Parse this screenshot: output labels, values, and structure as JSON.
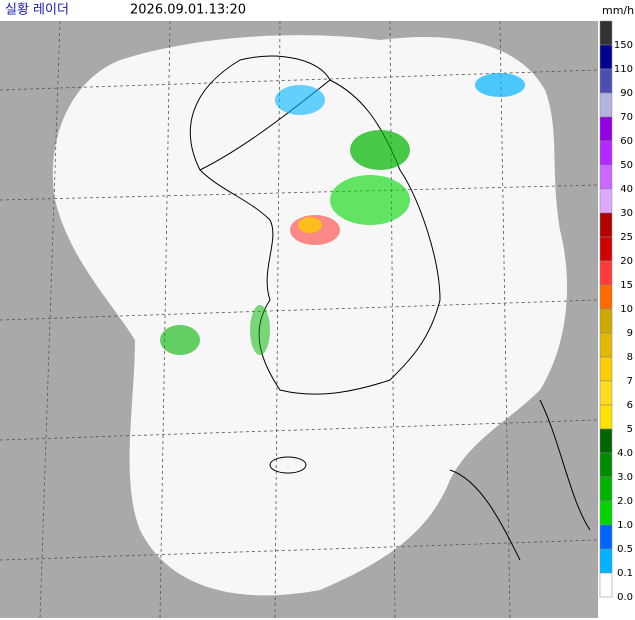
{
  "header": {
    "title": "실황 레이더",
    "time": "2026.09.01.13:20",
    "unit": "mm/h"
  },
  "legend": {
    "colors": [
      "#333333",
      "#000390",
      "#4c4eb1",
      "#b3b4de",
      "#9300e4",
      "#b329ff",
      "#c969ff",
      "#dfa9ff",
      "#b40000",
      "#d20000",
      "#ff3c3c",
      "#ff6a00",
      "#ccaa00",
      "#e0b900",
      "#f9cd00",
      "#ffdc1f",
      "#ffe100",
      "#006600",
      "#008c00",
      "#00b300",
      "#00d500",
      "#0064ff",
      "#00b4ff",
      "#ffffff"
    ],
    "labels": [
      "150",
      "110",
      "90",
      "70",
      "60",
      "50",
      "40",
      "30",
      "25",
      "20",
      "15",
      "10",
      "9",
      "8",
      "7",
      "6",
      "5",
      "4.0",
      "3.0",
      "2.0",
      "1.0",
      "0.5",
      "0.1",
      "0.0"
    ]
  }
}
